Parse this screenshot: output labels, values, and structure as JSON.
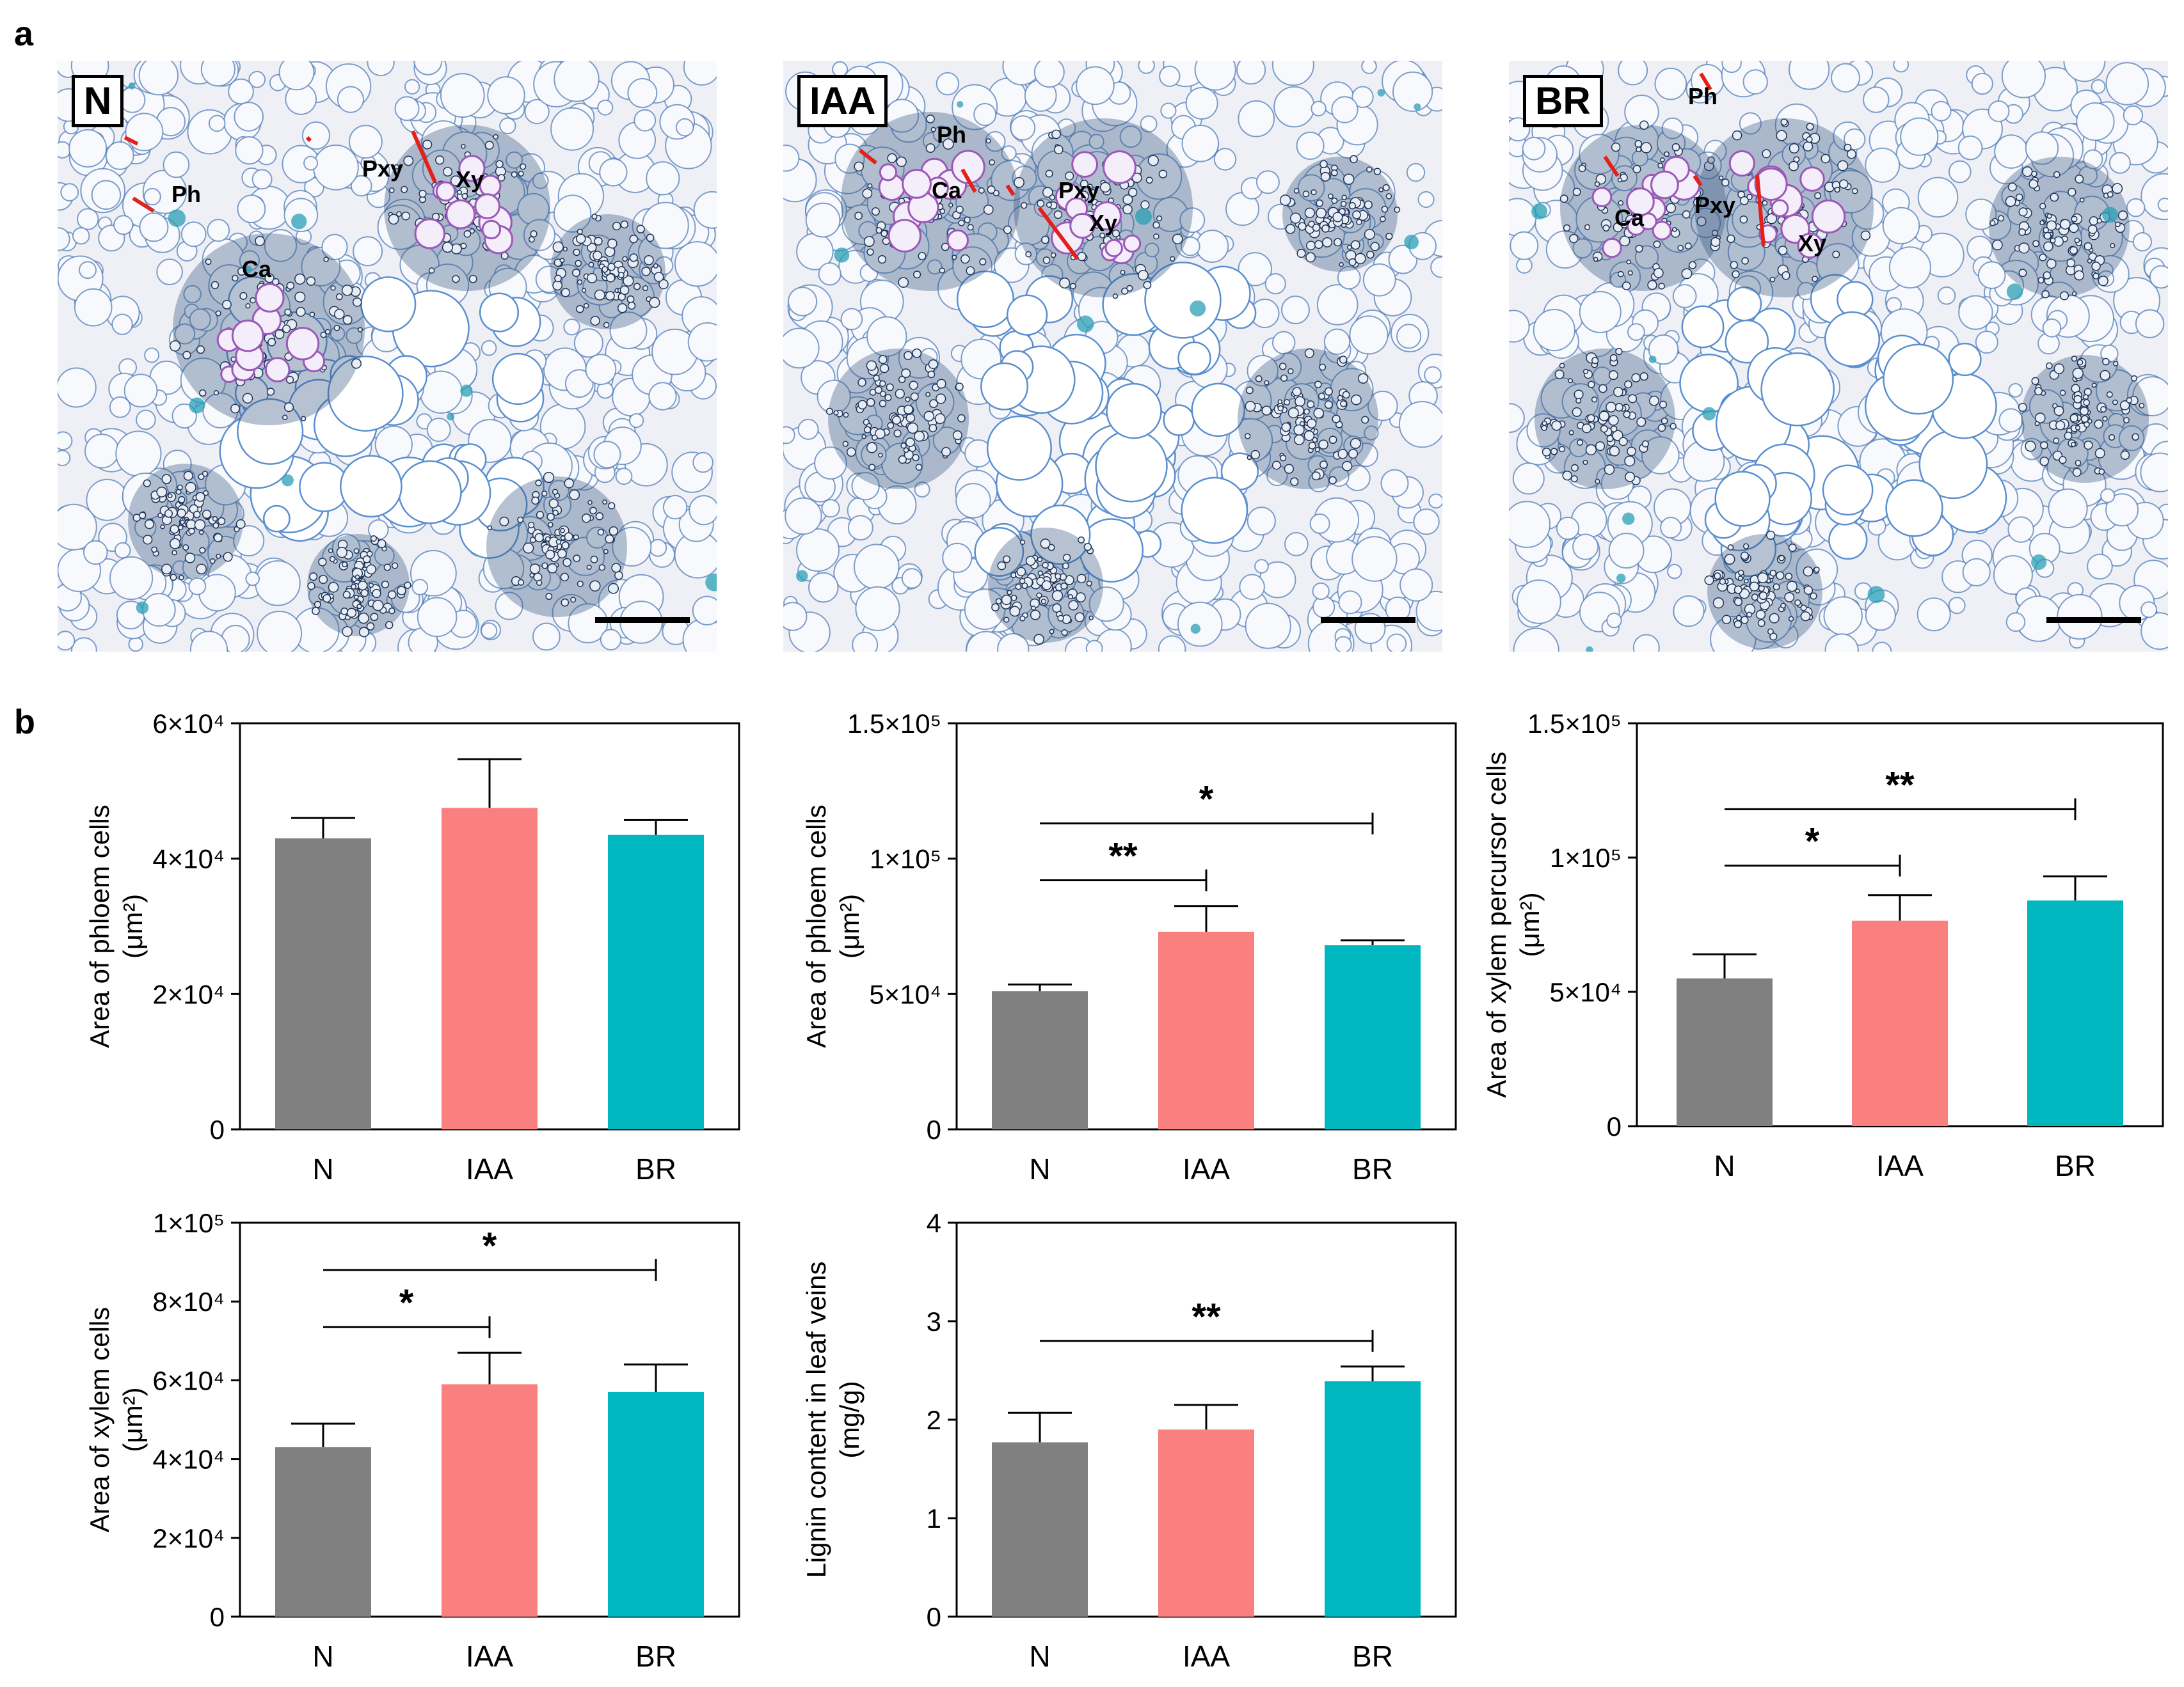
{
  "panel_labels": {
    "a": "a",
    "b": "b"
  },
  "colors": {
    "N": "#808080",
    "IAA": "#fa8080",
    "BR": "#00b7c0",
    "sig": "#000000",
    "tissue_line": "#e3201b",
    "stain": "#4a90c8"
  },
  "micrographs": [
    {
      "id": "N",
      "label": "N",
      "tissue_labels": [
        "Ph",
        "Pxy",
        "Xy",
        "Ca"
      ]
    },
    {
      "id": "IAA",
      "label": "IAA",
      "tissue_labels": [
        "Ph",
        "Ca",
        "Pxy",
        "Xy"
      ]
    },
    {
      "id": "BR",
      "label": "BR",
      "tissue_labels": [
        "Ph",
        "Ca",
        "Pxy",
        "Xy"
      ]
    }
  ],
  "chart_data": [
    {
      "type": "bar",
      "categories": [
        "N",
        "IAA",
        "BR"
      ],
      "values": [
        43000,
        47500,
        43500
      ],
      "errors": [
        3000,
        7200,
        2200
      ],
      "ylabel_lines": [
        "Area of phloem cells",
        "(μm²)"
      ],
      "ylim": [
        0,
        60000
      ],
      "ticks": [
        {
          "v": 0,
          "label": "0"
        },
        {
          "v": 20000,
          "label": "2×10⁴"
        },
        {
          "v": 40000,
          "label": "4×10⁴"
        },
        {
          "v": 60000,
          "label": "6×10⁴"
        }
      ],
      "significance": []
    },
    {
      "type": "bar",
      "categories": [
        "N",
        "IAA",
        "BR"
      ],
      "values": [
        51000,
        73000,
        68000
      ],
      "errors": [
        2500,
        9500,
        1800
      ],
      "ylabel_lines": [
        "Area of phloem cells",
        "(μm²)"
      ],
      "ylim": [
        0,
        150000
      ],
      "ticks": [
        {
          "v": 0,
          "label": "0"
        },
        {
          "v": 50000,
          "label": "5×10⁴"
        },
        {
          "v": 100000,
          "label": "1×10⁵"
        },
        {
          "v": 150000,
          "label": "1.5×10⁵"
        }
      ],
      "significance": [
        {
          "from": "N",
          "to": "IAA",
          "label": "**",
          "y": 92000
        },
        {
          "from": "N",
          "to": "BR",
          "label": "*",
          "y": 113000
        }
      ]
    },
    {
      "type": "bar",
      "categories": [
        "N",
        "IAA",
        "BR"
      ],
      "values": [
        55000,
        76500,
        84000
      ],
      "errors": [
        9000,
        9500,
        9000
      ],
      "ylabel_lines": [
        "Area of xylem percursor cells",
        "(μm²)"
      ],
      "ylim": [
        0,
        150000
      ],
      "ticks": [
        {
          "v": 0,
          "label": "0"
        },
        {
          "v": 50000,
          "label": "5×10⁴"
        },
        {
          "v": 100000,
          "label": "1×10⁵"
        },
        {
          "v": 150000,
          "label": "1.5×10⁵"
        }
      ],
      "significance": [
        {
          "from": "N",
          "to": "IAA",
          "label": "*",
          "y": 97000
        },
        {
          "from": "N",
          "to": "BR",
          "label": "**",
          "y": 118000
        }
      ]
    },
    {
      "type": "bar",
      "categories": [
        "N",
        "IAA",
        "BR"
      ],
      "values": [
        43000,
        59000,
        57000
      ],
      "errors": [
        6000,
        8000,
        7000
      ],
      "ylabel_lines": [
        "Area of xylem cells",
        "(μm²)"
      ],
      "ylim": [
        0,
        100000
      ],
      "ticks": [
        {
          "v": 0,
          "label": "0"
        },
        {
          "v": 20000,
          "label": "2×10⁴"
        },
        {
          "v": 40000,
          "label": "4×10⁴"
        },
        {
          "v": 60000,
          "label": "6×10⁴"
        },
        {
          "v": 80000,
          "label": "8×10⁴"
        },
        {
          "v": 100000,
          "label": "1×10⁵"
        }
      ],
      "significance": [
        {
          "from": "N",
          "to": "IAA",
          "label": "*",
          "y": 73500
        },
        {
          "from": "N",
          "to": "BR",
          "label": "*",
          "y": 88000
        }
      ]
    },
    {
      "type": "bar",
      "categories": [
        "N",
        "IAA",
        "BR"
      ],
      "values": [
        1.77,
        1.9,
        2.39
      ],
      "errors": [
        0.3,
        0.25,
        0.15
      ],
      "ylabel_lines": [
        "Lignin content in leaf veins",
        "(mg/g)"
      ],
      "ylim": [
        0,
        4
      ],
      "ticks": [
        {
          "v": 0,
          "label": "0"
        },
        {
          "v": 1,
          "label": "1"
        },
        {
          "v": 2,
          "label": "2"
        },
        {
          "v": 3,
          "label": "3"
        },
        {
          "v": 4,
          "label": "4"
        }
      ],
      "significance": [
        {
          "from": "N",
          "to": "BR",
          "label": "**",
          "y": 2.8
        }
      ]
    }
  ]
}
